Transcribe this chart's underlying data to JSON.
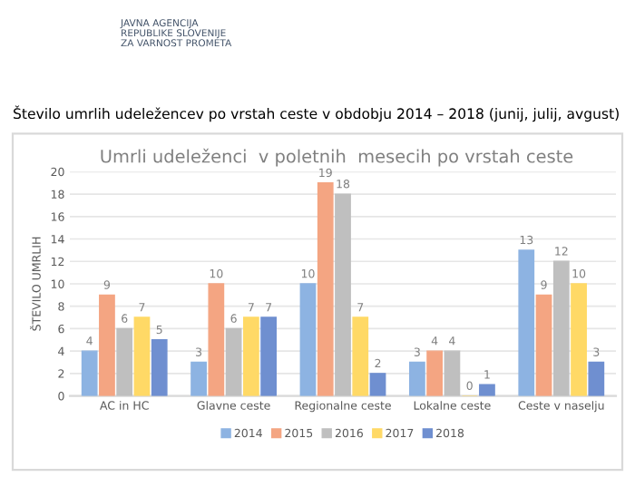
{
  "chart_data": {
    "type": "bar",
    "title": "Število umrlih udeležencev po vrstah ceste v obdobju 2014 – 2018 (junij, julij, avgust)",
    "subtitle": "Umrli udeleženci  v poletnih  mesecih po vrstah ceste",
    "ylabel": "ŠTEVILO UMRLIH",
    "annotations": [
      "JAVNA AGENCIJA\nREPUBLIKE SLOVENIJE\nZA VARNOST PROMETA"
    ],
    "categories": [
      "AC in HC",
      "Glavne ceste",
      "Regionalne ceste",
      "Lokalne ceste",
      "Ceste v naselju"
    ],
    "series": [
      {
        "name": "2014",
        "color": "#8db3e2",
        "values": [
          4,
          3,
          10,
          3,
          13
        ]
      },
      {
        "name": "2015",
        "color": "#f4a582",
        "values": [
          9,
          10,
          19,
          4,
          9
        ]
      },
      {
        "name": "2016",
        "color": "#bfbfbf",
        "values": [
          6,
          6,
          18,
          4,
          12
        ]
      },
      {
        "name": "2017",
        "color": "#ffd966",
        "values": [
          7,
          7,
          7,
          0,
          10
        ]
      },
      {
        "name": "2018",
        "color": "#6f8fd0",
        "values": [
          5,
          7,
          2,
          1,
          3
        ]
      }
    ],
    "ylim": [
      0,
      20
    ],
    "yticks": [
      0,
      2,
      4,
      6,
      8,
      10,
      12,
      14,
      16,
      18,
      20
    ],
    "grid": "y",
    "legend": "bottom",
    "data_labels": true
  }
}
